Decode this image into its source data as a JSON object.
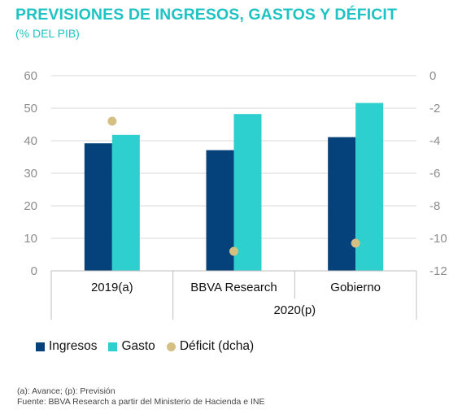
{
  "title": "PREVISIONES DE INGRESOS, GASTOS Y DÉFICIT",
  "subtitle": "(% DEL PIB)",
  "colors": {
    "ingresos": "#05417a",
    "gasto": "#2ecfcf",
    "deficit": "#d6bf83",
    "title": "#1fc3c4"
  },
  "chart_data": {
    "type": "bar",
    "categories": [
      "2019(a)",
      "BBVA Research",
      "Gobierno"
    ],
    "group_labels": [
      {
        "label": "2020(p)",
        "categories": [
          "BBVA Research",
          "Gobierno"
        ]
      }
    ],
    "series": [
      {
        "name": "Ingresos",
        "axis": "left",
        "type": "bar",
        "values": [
          39.2,
          37.1,
          41.1
        ]
      },
      {
        "name": "Gasto",
        "axis": "right_no",
        "type": "bar",
        "values": [
          41.8,
          48.2,
          51.6
        ]
      },
      {
        "name": "Déficit (dcha)",
        "axis": "right",
        "type": "scatter",
        "values": [
          -2.8,
          -10.8,
          -10.3
        ]
      }
    ],
    "y_left": {
      "lim": [
        0,
        60
      ],
      "ticks": [
        "0",
        "10",
        "20",
        "30",
        "40",
        "50",
        "60"
      ]
    },
    "y_right": {
      "lim": [
        -12,
        0
      ],
      "ticks": [
        "-12",
        "-10",
        "-8",
        "-6",
        "-4",
        "-2",
        "0"
      ]
    },
    "grid": true,
    "legend_position": "bottom-left"
  },
  "legend": [
    {
      "label": "Ingresos",
      "kind": "square",
      "color": "#05417a"
    },
    {
      "label": "Gasto",
      "kind": "square",
      "color": "#2ecfcf"
    },
    {
      "label": "Déficit (dcha)",
      "kind": "dot",
      "color": "#d6bf83"
    }
  ],
  "notes": {
    "line1": "(a): Avance; (p): Previsión",
    "line2": "Fuente: BBVA Research a partir del Ministerio de Hacienda e INE"
  }
}
